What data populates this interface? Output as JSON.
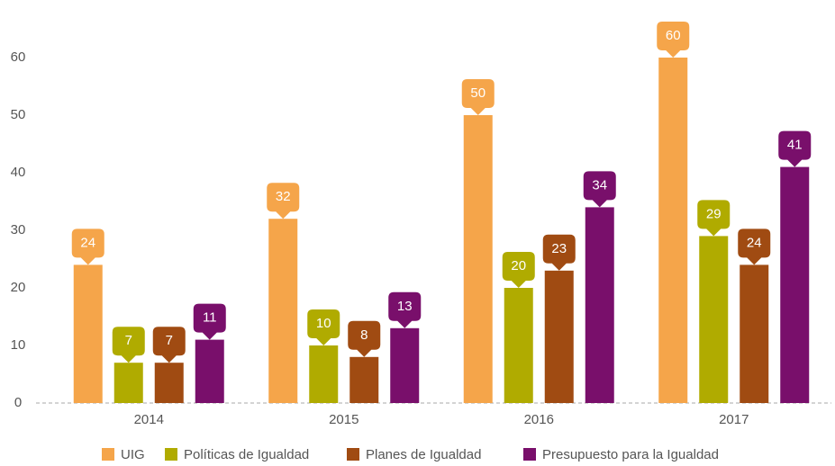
{
  "chart_data": {
    "type": "bar",
    "categories": [
      "2014",
      "2015",
      "2016",
      "2017"
    ],
    "series": [
      {
        "name": "UIG",
        "color": "#f5a54a",
        "values": [
          24,
          32,
          50,
          60
        ]
      },
      {
        "name": "Políticas de Igualdad",
        "color": "#b0ab00",
        "values": [
          7,
          10,
          20,
          29
        ]
      },
      {
        "name": "Planes de Igualdad",
        "color": "#a04b12",
        "values": [
          7,
          8,
          23,
          24
        ]
      },
      {
        "name": "Presupuesto para la Igualdad",
        "color": "#790f6b",
        "values": [
          11,
          13,
          34,
          41
        ]
      }
    ],
    "ylim": [
      0,
      60
    ],
    "yticks": [
      0,
      10,
      20,
      30,
      40,
      50,
      60
    ],
    "grid": false,
    "legend": "bottom"
  }
}
